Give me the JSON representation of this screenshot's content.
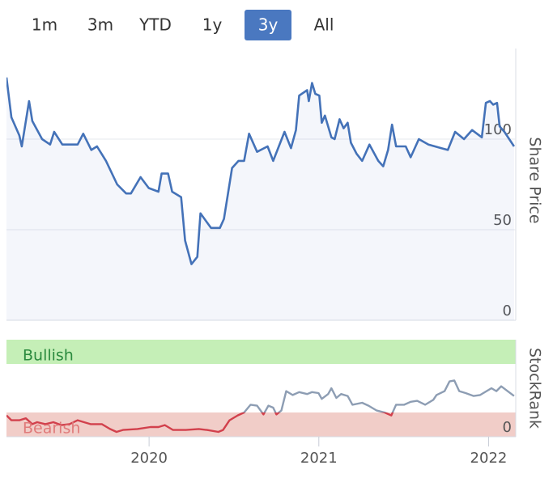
{
  "range_buttons": {
    "labels": [
      "1m",
      "3m",
      "YTD",
      "1y",
      "3y",
      "All"
    ],
    "selected": 4
  },
  "chart_data": [
    {
      "type": "line",
      "y_label": "Share Price",
      "xlim": [
        2019.16,
        2022.16
      ],
      "ylim": [
        0,
        150
      ],
      "yticks": [
        0,
        50,
        100
      ],
      "grid": true,
      "x": [
        2019.16,
        2019.189,
        2019.236,
        2019.25,
        2019.293,
        2019.312,
        2019.37,
        2019.417,
        2019.441,
        2019.489,
        2019.579,
        2019.612,
        2019.66,
        2019.693,
        2019.746,
        2019.812,
        2019.865,
        2019.893,
        2019.95,
        2019.998,
        2020.055,
        2020.074,
        2020.112,
        2020.136,
        2020.189,
        2020.212,
        2020.25,
        2020.284,
        2020.303,
        2020.365,
        2020.417,
        2020.441,
        2020.489,
        2020.527,
        2020.56,
        2020.589,
        2020.636,
        2020.698,
        2020.731,
        2020.798,
        2020.836,
        2020.865,
        2020.884,
        2020.931,
        2020.941,
        2020.96,
        2020.979,
        2021.003,
        2021.017,
        2021.036,
        2021.074,
        2021.093,
        2021.122,
        2021.146,
        2021.17,
        2021.189,
        2021.222,
        2021.255,
        2021.298,
        2021.35,
        2021.379,
        2021.408,
        2021.431,
        2021.455,
        2021.512,
        2021.541,
        2021.589,
        2021.646,
        2021.722,
        2021.76,
        2021.803,
        2021.855,
        2021.903,
        2021.96,
        2021.984,
        2022.008,
        2022.027,
        2022.05,
        2022.065,
        2022.093,
        2022.15
      ],
      "series": [
        {
          "color": "#4472b8",
          "values": [
            134,
            112,
            102,
            96,
            121,
            110,
            100,
            97,
            104,
            97,
            97,
            103,
            94,
            96,
            88,
            75,
            70,
            70,
            79,
            73,
            71,
            81,
            81,
            71,
            68,
            44,
            31,
            35,
            59,
            51,
            51,
            56,
            84,
            88,
            88,
            103,
            93,
            96,
            88,
            104,
            95,
            105,
            124,
            127,
            121,
            131,
            125,
            124,
            109,
            113,
            101,
            100,
            111,
            106,
            109,
            98,
            92,
            88,
            97,
            88,
            85,
            94,
            108,
            96,
            96,
            90,
            100,
            97,
            95,
            94,
            104,
            100,
            105,
            101,
            120,
            121,
            119,
            120,
            107,
            104,
            96
          ]
        }
      ]
    },
    {
      "type": "line",
      "y_label": "StockRank",
      "xlim": [
        2019.16,
        2022.16
      ],
      "ylim": [
        0,
        100
      ],
      "yticks": [
        0
      ],
      "xticks": [
        {
          "value": 2020,
          "label": "2020"
        },
        {
          "value": 2021,
          "label": "2021"
        },
        {
          "value": 2022,
          "label": "2022"
        }
      ],
      "bands": [
        {
          "label": "Bullish",
          "from": 75,
          "to": 100,
          "color": "#c5efb7",
          "text_color": "#2b8a3e"
        },
        {
          "label": "Bearish",
          "from": 0,
          "to": 25,
          "color": "#f1cdc8",
          "text_color": "#e07a7a",
          "line_color": "#d2404c"
        }
      ],
      "x": [
        2019.16,
        2019.189,
        2019.236,
        2019.274,
        2019.312,
        2019.341,
        2019.389,
        2019.436,
        2019.484,
        2019.531,
        2019.579,
        2019.617,
        2019.655,
        2019.722,
        2019.77,
        2019.808,
        2019.846,
        2019.931,
        2020.008,
        2020.055,
        2020.093,
        2020.141,
        2020.217,
        2020.293,
        2020.341,
        2020.408,
        2020.436,
        2020.474,
        2020.522,
        2020.56,
        2020.598,
        2020.636,
        2020.674,
        2020.703,
        2020.731,
        2020.75,
        2020.779,
        2020.808,
        2020.846,
        2020.884,
        2020.931,
        2020.96,
        2020.998,
        2021.017,
        2021.055,
        2021.074,
        2021.103,
        2021.131,
        2021.17,
        2021.198,
        2021.255,
        2021.293,
        2021.341,
        2021.388,
        2021.427,
        2021.455,
        2021.503,
        2021.541,
        2021.579,
        2021.627,
        2021.674,
        2021.693,
        2021.741,
        2021.77,
        2021.798,
        2021.827,
        2021.865,
        2021.912,
        2021.95,
        2021.988,
        2022.017,
        2022.046,
        2022.074,
        2022.112,
        2022.15
      ],
      "series": [
        {
          "color": "#8d9db3",
          "values": [
            22,
            17,
            17,
            19,
            13,
            15,
            13,
            15,
            12,
            13,
            17,
            15,
            13,
            13,
            8,
            5,
            7,
            8,
            10,
            10,
            12,
            7,
            7,
            8,
            7,
            5,
            7,
            17,
            22,
            25,
            33,
            32,
            23,
            32,
            30,
            23,
            27,
            47,
            43,
            46,
            44,
            46,
            45,
            39,
            44,
            50,
            40,
            44,
            42,
            33,
            35,
            32,
            27,
            25,
            22,
            33,
            33,
            36,
            37,
            33,
            38,
            43,
            47,
            57,
            58,
            47,
            45,
            42,
            43,
            47,
            50,
            47,
            52,
            47,
            42
          ]
        }
      ]
    }
  ]
}
